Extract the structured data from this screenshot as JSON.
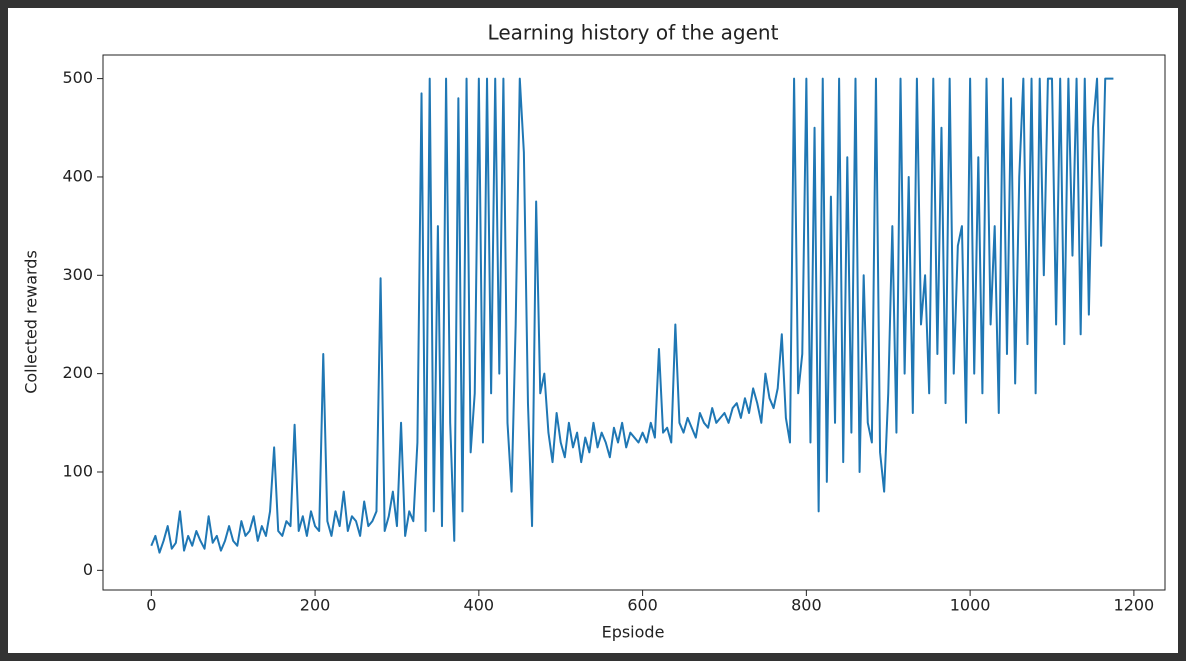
{
  "chart_data": {
    "type": "line",
    "title": "Learning history of the agent",
    "x_label": "Epsiode",
    "y_label": "Collected rewards",
    "x": [
      0,
      5,
      10,
      15,
      20,
      25,
      30,
      35,
      40,
      45,
      50,
      55,
      60,
      65,
      70,
      75,
      80,
      85,
      90,
      95,
      100,
      105,
      110,
      115,
      120,
      125,
      130,
      135,
      140,
      145,
      150,
      155,
      160,
      165,
      170,
      175,
      180,
      185,
      190,
      195,
      200,
      205,
      210,
      215,
      220,
      225,
      230,
      235,
      240,
      245,
      250,
      255,
      260,
      265,
      270,
      275,
      280,
      285,
      290,
      295,
      300,
      305,
      310,
      315,
      320,
      325,
      330,
      335,
      340,
      345,
      350,
      355,
      360,
      365,
      370,
      375,
      380,
      385,
      390,
      395,
      400,
      405,
      410,
      415,
      420,
      425,
      430,
      435,
      440,
      445,
      450,
      455,
      460,
      465,
      470,
      475,
      480,
      485,
      490,
      495,
      500,
      505,
      510,
      515,
      520,
      525,
      530,
      535,
      540,
      545,
      550,
      555,
      560,
      565,
      570,
      575,
      580,
      585,
      590,
      595,
      600,
      605,
      610,
      615,
      620,
      625,
      630,
      635,
      640,
      645,
      650,
      655,
      660,
      665,
      670,
      675,
      680,
      685,
      690,
      695,
      700,
      705,
      710,
      715,
      720,
      725,
      730,
      735,
      740,
      745,
      750,
      755,
      760,
      765,
      770,
      775,
      780,
      785,
      790,
      795,
      800,
      805,
      810,
      815,
      820,
      825,
      830,
      835,
      840,
      845,
      850,
      855,
      860,
      865,
      870,
      875,
      880,
      885,
      890,
      895,
      900,
      905,
      910,
      915,
      920,
      925,
      930,
      935,
      940,
      945,
      950,
      955,
      960,
      965,
      970,
      975,
      980,
      985,
      990,
      995,
      1000,
      1005,
      1010,
      1015,
      1020,
      1025,
      1030,
      1035,
      1040,
      1045,
      1050,
      1055,
      1060,
      1065,
      1070,
      1075,
      1080,
      1085,
      1090,
      1095,
      1100,
      1105,
      1110,
      1115,
      1120,
      1125,
      1130,
      1135,
      1140,
      1145,
      1150,
      1155,
      1160,
      1165,
      1170,
      1175
    ],
    "series": [
      {
        "color": "#1f77b4",
        "values": [
          25,
          35,
          18,
          30,
          45,
          22,
          28,
          60,
          20,
          35,
          25,
          40,
          30,
          22,
          55,
          28,
          35,
          20,
          30,
          45,
          30,
          25,
          50,
          35,
          40,
          55,
          30,
          45,
          35,
          60,
          125,
          40,
          35,
          50,
          45,
          148,
          40,
          55,
          35,
          60,
          45,
          40,
          220,
          50,
          35,
          60,
          45,
          80,
          40,
          55,
          50,
          35,
          70,
          45,
          50,
          60,
          297,
          40,
          55,
          80,
          45,
          150,
          35,
          60,
          50,
          130,
          485,
          40,
          500,
          60,
          350,
          45,
          500,
          150,
          30,
          480,
          60,
          500,
          120,
          180,
          500,
          130,
          500,
          180,
          500,
          200,
          500,
          150,
          80,
          250,
          500,
          425,
          170,
          45,
          375,
          180,
          200,
          140,
          110,
          160,
          130,
          115,
          150,
          125,
          140,
          110,
          135,
          120,
          150,
          125,
          140,
          130,
          115,
          145,
          130,
          150,
          125,
          140,
          135,
          130,
          140,
          130,
          150,
          135,
          225,
          140,
          145,
          130,
          250,
          150,
          140,
          155,
          145,
          135,
          160,
          150,
          145,
          165,
          150,
          155,
          160,
          150,
          165,
          170,
          155,
          175,
          160,
          185,
          170,
          150,
          200,
          175,
          165,
          185,
          240,
          155,
          130,
          500,
          180,
          220,
          500,
          130,
          450,
          60,
          500,
          90,
          380,
          150,
          500,
          110,
          420,
          140,
          500,
          100,
          300,
          150,
          130,
          500,
          120,
          80,
          180,
          350,
          140,
          500,
          200,
          400,
          160,
          500,
          250,
          300,
          180,
          500,
          220,
          450,
          170,
          500,
          200,
          330,
          350,
          150,
          500,
          200,
          420,
          180,
          500,
          250,
          350,
          160,
          500,
          220,
          480,
          190,
          400,
          500,
          230,
          500,
          180,
          500,
          300,
          500,
          500,
          250,
          500,
          230,
          500,
          320,
          500,
          240,
          500,
          260,
          450,
          500,
          330,
          500,
          500,
          500
        ]
      }
    ],
    "xlim": [
      -59,
      1238
    ],
    "ylim": [
      -20,
      524
    ],
    "xticks": [
      0,
      200,
      400,
      600,
      800,
      1000,
      1200
    ],
    "yticks": [
      0,
      100,
      200,
      300,
      400,
      500
    ]
  }
}
